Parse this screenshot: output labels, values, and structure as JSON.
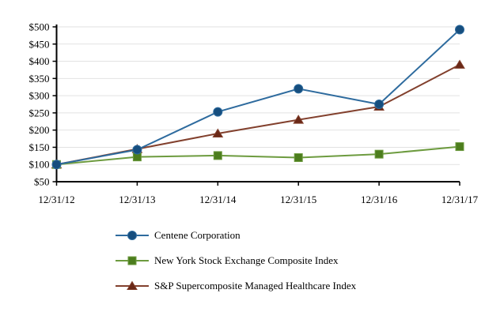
{
  "chart_data": {
    "type": "line",
    "title": "",
    "xlabel": "",
    "ylabel": "",
    "grid": true,
    "legend_position": "bottom-left",
    "x_categories": [
      "12/31/12",
      "12/31/13",
      "12/31/14",
      "12/31/15",
      "12/31/16",
      "12/31/17"
    ],
    "y_axis": {
      "min": 50,
      "max": 500,
      "step": 50,
      "tick_labels": [
        "$50",
        "$100",
        "$150",
        "$200",
        "$250",
        "$300",
        "$350",
        "$400",
        "$450",
        "$500"
      ]
    },
    "series": [
      {
        "name": "Centene Corporation",
        "marker": "circle",
        "line_color": "#2e6b9e",
        "marker_color": "#164e7e",
        "values": [
          100,
          143,
          253,
          320,
          275,
          492
        ]
      },
      {
        "name": "New York Stock Exchange Composite Index",
        "marker": "square",
        "line_color": "#6d9b3f",
        "marker_color": "#4c7d1d",
        "values": [
          100,
          122,
          126,
          120,
          130,
          152
        ]
      },
      {
        "name": "S&P Supercomposite Managed Healthcare Index",
        "marker": "triangle",
        "line_color": "#82402d",
        "marker_color": "#6a2817",
        "values": [
          100,
          145,
          190,
          230,
          268,
          390
        ]
      }
    ],
    "colors": {
      "axis": "#000000",
      "grid": "#e2e2e2",
      "background": "#ffffff",
      "text": "#000000"
    }
  }
}
